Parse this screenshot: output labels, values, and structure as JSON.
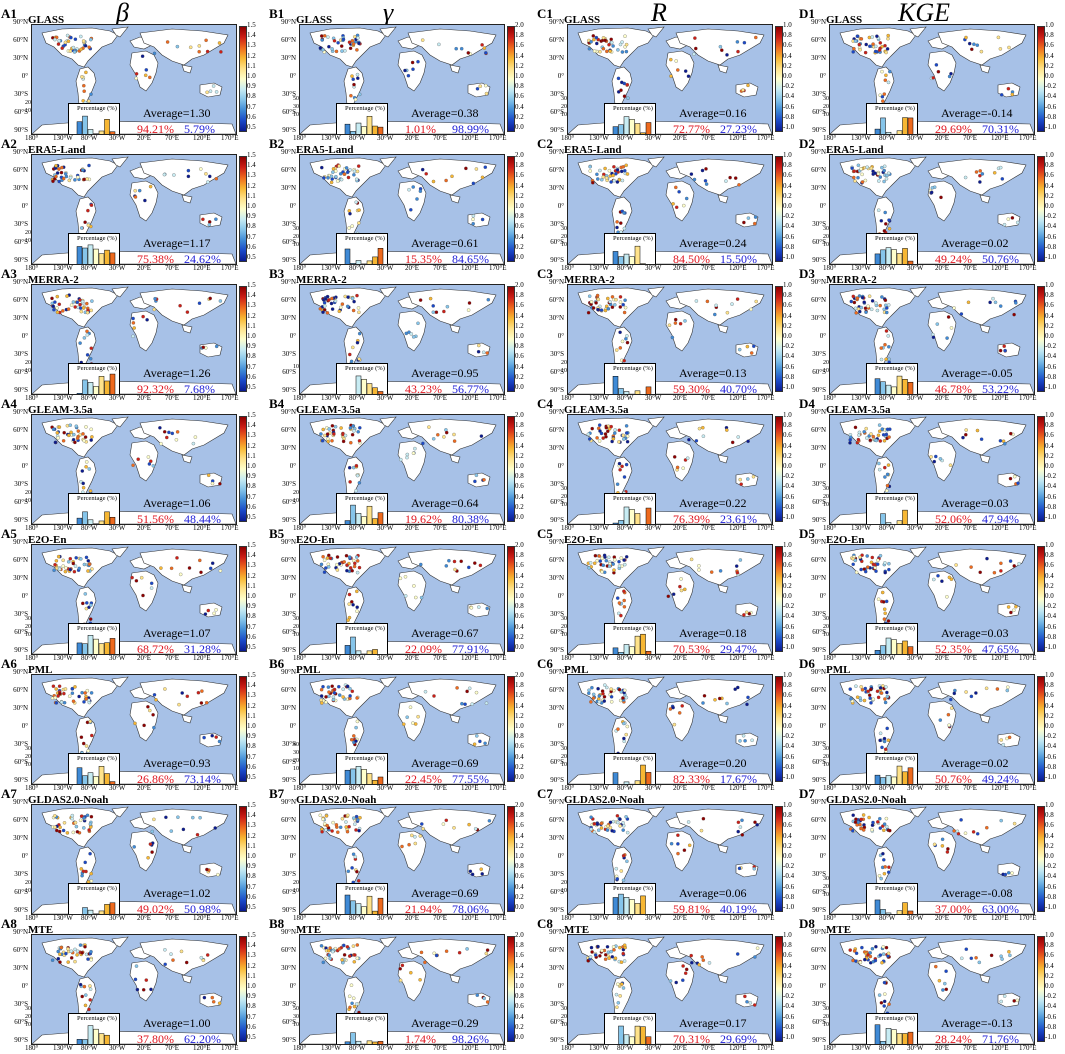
{
  "column_headers": [
    "β",
    "γ",
    "R",
    "KGE"
  ],
  "datasets": [
    "GLASS",
    "ERA5-Land",
    "MERRA-2",
    "GLEAM-3.5a",
    "E2O-En",
    "PML",
    "GLDAS2.0-Noah",
    "MTE"
  ],
  "lat_labels": [
    "90°N",
    "60°N",
    "30°N",
    "0°",
    "30°S",
    "60°S",
    "90°S"
  ],
  "lon_labels": [
    "180°",
    "130°W",
    "80°W",
    "30°W",
    "20°E",
    "70°E",
    "120°E",
    "170°E"
  ],
  "inset_title": "Percentage (%)",
  "colorbars": {
    "beta": [
      "1.5",
      "1.4",
      "1.3",
      "1.2",
      "1.1",
      "1.0",
      "0.9",
      "0.8",
      "0.7",
      "0.6",
      "0.5"
    ],
    "gamma": [
      "2.0",
      "1.8",
      "1.6",
      "1.4",
      "1.2",
      "1.0",
      "0.8",
      "0.6",
      "0.4",
      "0.2",
      "0.0"
    ],
    "r": [
      "1.0",
      "0.8",
      "0.6",
      "0.4",
      "0.2",
      "0.0",
      "-0.2",
      "-0.4",
      "-0.6",
      "-0.8",
      "-1.0"
    ],
    "kge": [
      "1.0",
      "0.8",
      "0.6",
      "0.4",
      "0.2",
      "0.0",
      "-0.2",
      "-0.4",
      "-0.6",
      "-0.8",
      "-1.0"
    ]
  },
  "panels": [
    {
      "col": 0,
      "row": 0,
      "label": "A1",
      "avg": "Average=1.30",
      "red": "94.21%",
      "blue": "5.79%",
      "yticks": [
        "20",
        "10"
      ]
    },
    {
      "col": 0,
      "row": 1,
      "label": "A2",
      "avg": "Average=1.17",
      "red": "75.38%",
      "blue": "24.62%",
      "yticks": [
        "20",
        "10"
      ]
    },
    {
      "col": 0,
      "row": 2,
      "label": "A3",
      "avg": "Average=1.26",
      "red": "92.32%",
      "blue": "7.68%",
      "yticks": [
        "20",
        "10"
      ]
    },
    {
      "col": 0,
      "row": 3,
      "label": "A4",
      "avg": "Average=1.06",
      "red": "51.56%",
      "blue": "48.44%",
      "yticks": [
        "20",
        "10"
      ]
    },
    {
      "col": 0,
      "row": 4,
      "label": "A5",
      "avg": "Average=1.07",
      "red": "68.72%",
      "blue": "31.28%",
      "yticks": [
        "30",
        "20",
        "10"
      ]
    },
    {
      "col": 0,
      "row": 5,
      "label": "A6",
      "avg": "Average=0.93",
      "red": "26.86%",
      "blue": "73.14%",
      "yticks": [
        "30",
        "20",
        "10"
      ]
    },
    {
      "col": 0,
      "row": 6,
      "label": "A7",
      "avg": "Average=1.02",
      "red": "49.02%",
      "blue": "50.98%",
      "yticks": [
        "20",
        "10"
      ]
    },
    {
      "col": 0,
      "row": 7,
      "label": "A8",
      "avg": "Average=1.00",
      "red": "37.80%",
      "blue": "62.20%",
      "yticks": [
        "30",
        "20",
        "10"
      ]
    },
    {
      "col": 1,
      "row": 0,
      "label": "B1",
      "avg": "Average=0.38",
      "red": "1.01%",
      "blue": "98.99%",
      "yticks": [
        "50",
        "30",
        "10"
      ]
    },
    {
      "col": 1,
      "row": 1,
      "label": "B2",
      "avg": "Average=0.61",
      "red": "15.35%",
      "blue": "84.65%",
      "yticks": [
        "30",
        "20",
        "10"
      ]
    },
    {
      "col": 1,
      "row": 2,
      "label": "B3",
      "avg": "Average=0.95",
      "red": "43.23%",
      "blue": "56.77%",
      "yticks": [
        "10"
      ]
    },
    {
      "col": 1,
      "row": 3,
      "label": "B4",
      "avg": "Average=0.64",
      "red": "19.62%",
      "blue": "80.38%",
      "yticks": [
        "20",
        "10"
      ]
    },
    {
      "col": 1,
      "row": 4,
      "label": "B5",
      "avg": "Average=0.67",
      "red": "22.09%",
      "blue": "77.91%",
      "yticks": [
        "30",
        "20",
        "10"
      ]
    },
    {
      "col": 1,
      "row": 5,
      "label": "B6",
      "avg": "Average=0.69",
      "red": "22.45%",
      "blue": "77.55%",
      "yticks": [
        "40",
        "30",
        "20",
        "10"
      ]
    },
    {
      "col": 1,
      "row": 6,
      "label": "B7",
      "avg": "Average=0.69",
      "red": "21.94%",
      "blue": "78.06%",
      "yticks": [
        "20",
        "10"
      ]
    },
    {
      "col": 1,
      "row": 7,
      "label": "B8",
      "avg": "Average=0.29",
      "red": "1.74%",
      "blue": "98.26%",
      "yticks": [
        "50",
        "30",
        "10"
      ]
    },
    {
      "col": 2,
      "row": 0,
      "label": "C1",
      "avg": "Average=0.16",
      "red": "72.77%",
      "blue": "27.23%",
      "yticks": [
        "30",
        "20",
        "10"
      ]
    },
    {
      "col": 2,
      "row": 1,
      "label": "C2",
      "avg": "Average=0.24",
      "red": "84.50%",
      "blue": "15.50%",
      "yticks": [
        "30",
        "20",
        "10"
      ]
    },
    {
      "col": 2,
      "row": 2,
      "label": "C3",
      "avg": "Average=0.13",
      "red": "59.30%",
      "blue": "40.70%",
      "yticks": [
        "20",
        "10"
      ]
    },
    {
      "col": 2,
      "row": 3,
      "label": "C4",
      "avg": "Average=0.22",
      "red": "76.39%",
      "blue": "23.61%",
      "yticks": [
        "30",
        "20",
        "10"
      ]
    },
    {
      "col": 2,
      "row": 4,
      "label": "C5",
      "avg": "Average=0.18",
      "red": "70.53%",
      "blue": "29.47%",
      "yticks": [
        "30",
        "20",
        "10"
      ]
    },
    {
      "col": 2,
      "row": 5,
      "label": "C6",
      "avg": "Average=0.20",
      "red": "82.33%",
      "blue": "17.67%",
      "yticks": [
        "30",
        "20",
        "10"
      ]
    },
    {
      "col": 2,
      "row": 6,
      "label": "C7",
      "avg": "Average=0.06",
      "red": "59.81%",
      "blue": "40.19%",
      "yticks": [
        "20",
        "10"
      ]
    },
    {
      "col": 2,
      "row": 7,
      "label": "C8",
      "avg": "Average=0.17",
      "red": "70.31%",
      "blue": "29.69%",
      "yticks": [
        "30",
        "20",
        "10"
      ]
    },
    {
      "col": 3,
      "row": 0,
      "label": "D1",
      "avg": "Average=-0.14",
      "red": "29.69%",
      "blue": "70.31%",
      "yticks": [
        "30",
        "20",
        "10"
      ]
    },
    {
      "col": 3,
      "row": 1,
      "label": "D2",
      "avg": "Average=0.02",
      "red": "49.24%",
      "blue": "50.76%",
      "yticks": [
        "30",
        "20",
        "10"
      ]
    },
    {
      "col": 3,
      "row": 2,
      "label": "D3",
      "avg": "Average=-0.05",
      "red": "46.78%",
      "blue": "53.22%",
      "yticks": [
        "20",
        "10"
      ]
    },
    {
      "col": 3,
      "row": 3,
      "label": "D4",
      "avg": "Average=0.03",
      "red": "52.06%",
      "blue": "47.94%",
      "yticks": [
        "30",
        "20",
        "10"
      ]
    },
    {
      "col": 3,
      "row": 4,
      "label": "D5",
      "avg": "Average=0.03",
      "red": "52.35%",
      "blue": "47.65%",
      "yticks": [
        "30",
        "20",
        "10"
      ]
    },
    {
      "col": 3,
      "row": 5,
      "label": "D6",
      "avg": "Average=0.02",
      "red": "50.76%",
      "blue": "49.24%",
      "yticks": [
        "30",
        "20",
        "10"
      ]
    },
    {
      "col": 3,
      "row": 6,
      "label": "D7",
      "avg": "Average=-0.08",
      "red": "37.00%",
      "blue": "63.00%",
      "yticks": [
        "30",
        "20",
        "10"
      ]
    },
    {
      "col": 3,
      "row": 7,
      "label": "D8",
      "avg": "Average=-0.13",
      "red": "28.24%",
      "blue": "71.76%",
      "yticks": [
        "30",
        "20",
        "10"
      ]
    }
  ],
  "colors": {
    "ocean": "#a7c1e7",
    "red_text": "#e0141e",
    "blue_text": "#1b1bd6",
    "colormap": [
      "#0b1a8f",
      "#1a48c8",
      "#3f8ad6",
      "#86c5ea",
      "#c8ecf3",
      "#ffffcc",
      "#ffe38a",
      "#f7b733",
      "#ee6a1e",
      "#cc1f17",
      "#8e0000"
    ]
  }
}
